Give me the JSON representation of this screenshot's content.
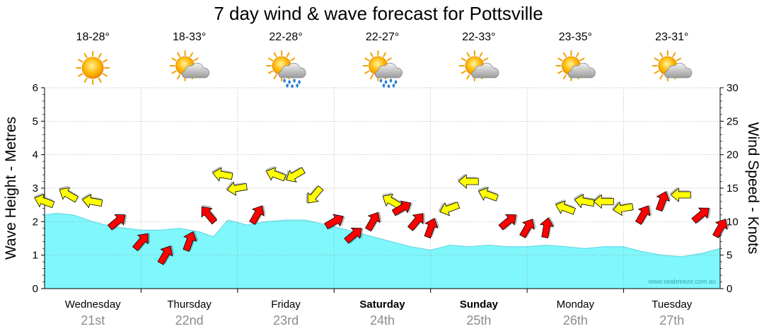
{
  "chart_data": {
    "type": "area",
    "title": "7 day wind & wave forecast for Pottsville",
    "ylabel_left": "Wave Height - Metres",
    "ylabel_right": "Wind Speed - Knots",
    "ylim_left": [
      0,
      6
    ],
    "ylim_right": [
      0,
      30
    ],
    "yticks_left": [
      "0",
      "1",
      "2",
      "3",
      "4",
      "5",
      "6"
    ],
    "yticks_right": [
      "0",
      "5",
      "10",
      "15",
      "20",
      "25",
      "30"
    ],
    "days": [
      {
        "name": "Wednesday",
        "date": "21st",
        "temp": "18-28°",
        "icon": "sun-icon",
        "bold": false
      },
      {
        "name": "Thursday",
        "date": "22nd",
        "temp": "18-33°",
        "icon": "partly-cloudy-icon",
        "bold": false
      },
      {
        "name": "Friday",
        "date": "23rd",
        "temp": "22-28°",
        "icon": "rain-icon",
        "bold": false
      },
      {
        "name": "Saturday",
        "date": "24th",
        "temp": "22-27°",
        "icon": "rain-icon",
        "bold": true
      },
      {
        "name": "Sunday",
        "date": "25th",
        "temp": "22-33°",
        "icon": "partly-cloudy-icon",
        "bold": true
      },
      {
        "name": "Monday",
        "date": "26th",
        "temp": "23-35°",
        "icon": "partly-cloudy-icon",
        "bold": false
      },
      {
        "name": "Tuesday",
        "date": "27th",
        "temp": "23-31°",
        "icon": "partly-cloudy-icon",
        "bold": false
      }
    ],
    "wave_height": {
      "x_days": [
        0,
        0.12,
        0.3,
        0.5,
        0.7,
        0.85,
        1.0,
        1.2,
        1.4,
        1.6,
        1.75,
        1.9,
        2.1,
        2.3,
        2.5,
        2.7,
        3.0,
        3.2,
        3.4,
        3.6,
        3.8,
        4.0,
        4.2,
        4.4,
        4.6,
        4.8,
        5.0,
        5.2,
        5.4,
        5.6,
        5.8,
        6.0,
        6.2,
        6.4,
        6.6,
        6.8,
        7.0
      ],
      "values": [
        2.2,
        2.25,
        2.2,
        2.0,
        1.85,
        1.8,
        1.75,
        1.75,
        1.8,
        1.7,
        1.55,
        2.05,
        1.9,
        2.0,
        2.05,
        2.05,
        1.85,
        1.7,
        1.55,
        1.4,
        1.25,
        1.15,
        1.3,
        1.25,
        1.3,
        1.25,
        1.25,
        1.3,
        1.25,
        1.2,
        1.25,
        1.25,
        1.1,
        1.0,
        0.95,
        1.05,
        1.2
      ]
    },
    "wind": {
      "x_days": [
        0,
        0.25,
        0.5,
        0.75,
        1.0,
        1.25,
        1.5,
        1.7,
        1.85,
        2.0,
        2.2,
        2.4,
        2.6,
        2.8,
        3.0,
        3.2,
        3.4,
        3.6,
        3.7,
        3.85,
        4.0,
        4.2,
        4.4,
        4.6,
        4.8,
        5.0,
        5.2,
        5.4,
        5.6,
        5.8,
        6.0,
        6.2,
        6.4,
        6.6,
        6.8,
        7.0
      ],
      "knots": [
        13,
        14,
        13,
        10,
        7,
        5,
        7,
        11,
        17,
        15,
        11,
        17,
        17,
        14,
        10,
        8,
        10,
        13,
        12,
        10,
        9,
        12,
        16,
        14,
        10,
        9,
        9,
        12,
        13,
        13,
        12,
        11,
        13,
        14,
        11,
        9
      ],
      "color": [
        "yellow",
        "yellow",
        "yellow",
        "red",
        "red",
        "red",
        "red",
        "red",
        "yellow",
        "yellow",
        "red",
        "yellow",
        "yellow",
        "yellow",
        "red",
        "red",
        "red",
        "yellow",
        "red",
        "red",
        "red",
        "yellow",
        "yellow",
        "yellow",
        "red",
        "red",
        "red",
        "yellow",
        "yellow",
        "yellow",
        "yellow",
        "red",
        "red",
        "yellow",
        "red",
        "red"
      ],
      "direction_deg": [
        200,
        210,
        190,
        320,
        310,
        300,
        290,
        230,
        190,
        170,
        300,
        200,
        150,
        130,
        330,
        320,
        300,
        210,
        330,
        310,
        290,
        160,
        180,
        200,
        320,
        300,
        280,
        200,
        190,
        180,
        170,
        300,
        290,
        180,
        320,
        300
      ]
    },
    "colors": {
      "wave_fill": "#7ff7fb",
      "wave_line": "#5fd4de",
      "wind_strong": "#ff0000",
      "wind_moderate": "#ffff00",
      "grid": "#999999"
    },
    "watermark": "www.seabreeze.com.au"
  }
}
